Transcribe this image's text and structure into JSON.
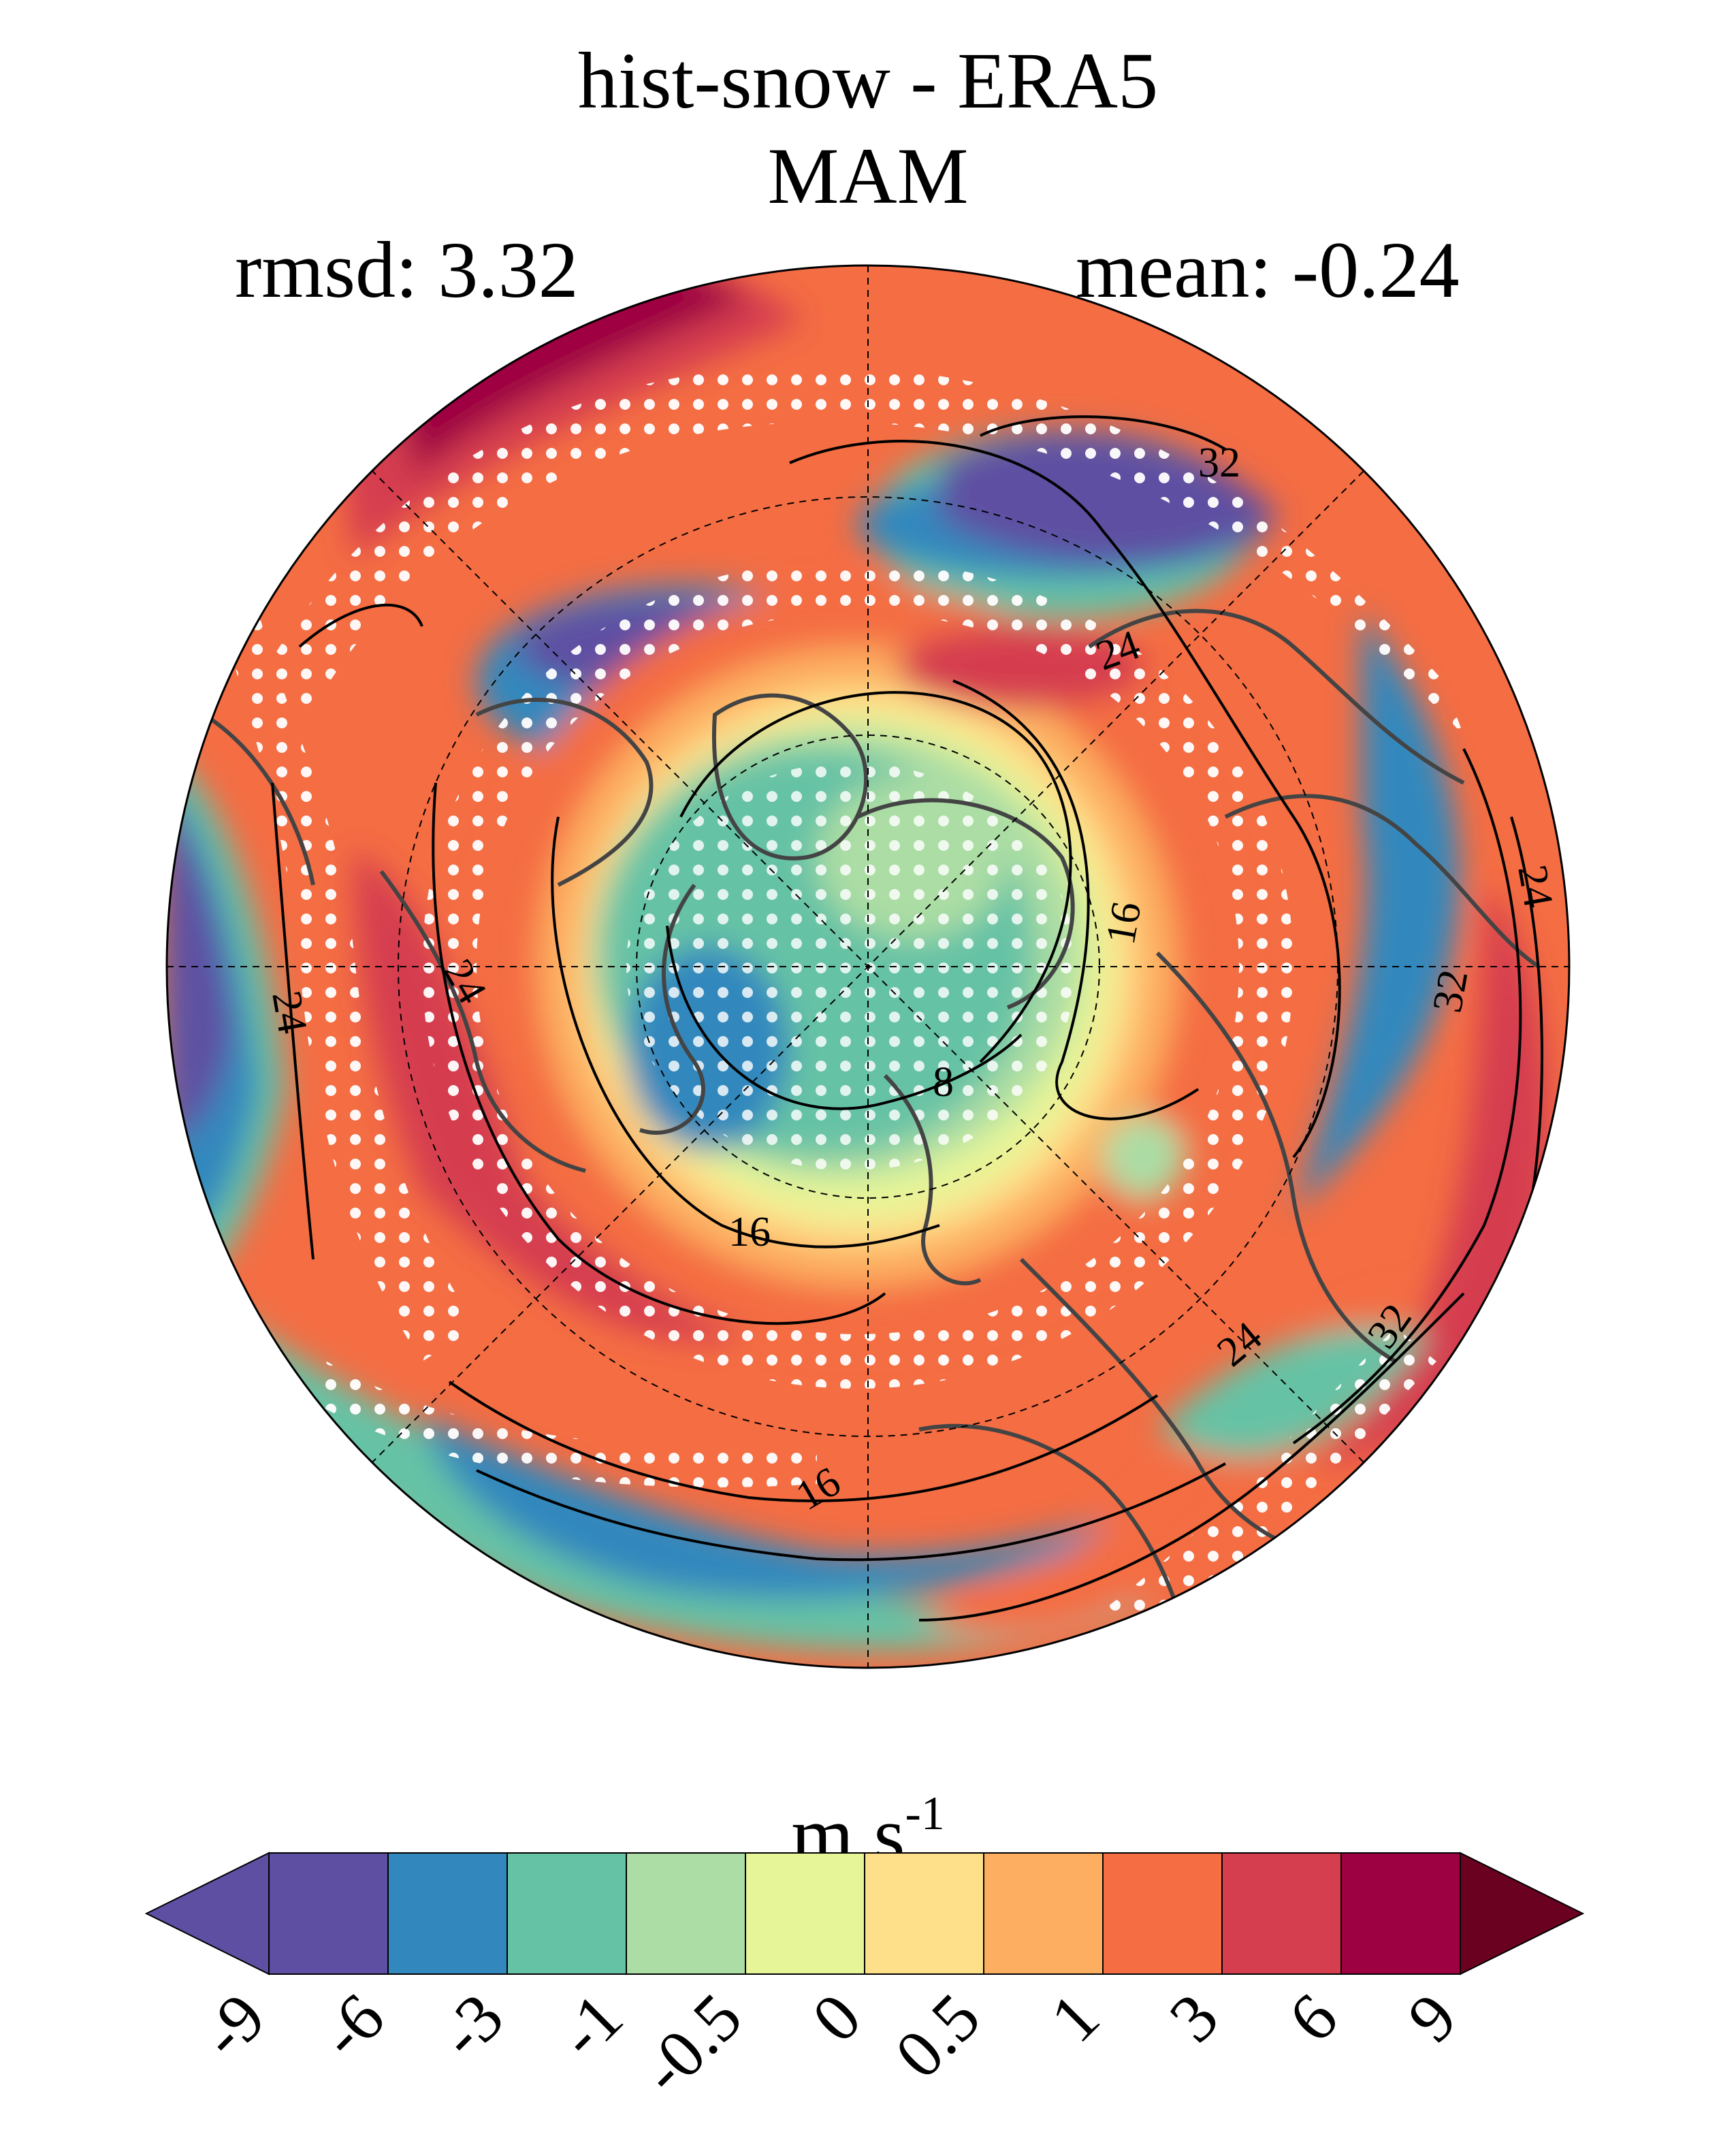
{
  "figure": {
    "title_line1": "hist-snow - ERA5",
    "title_line2": "MAM",
    "rmsd_label": "rmsd: 3.32",
    "mean_label": "mean: -0.24"
  },
  "map": {
    "projection": "north polar stereographic",
    "stippling": "white dots",
    "contour_labels": [
      "32",
      "24",
      "24",
      "24",
      "24",
      "16",
      "16",
      "16",
      "8",
      "32",
      "32",
      "24"
    ]
  },
  "colorbar": {
    "units": "m s",
    "units_exponent": "-1",
    "tick_labels": [
      "-9",
      "-6",
      "-3",
      "-1",
      "-0.5",
      "0",
      "0.5",
      "1",
      "3",
      "6",
      "9"
    ],
    "colors": [
      "#5e4fa2",
      "#5e4fa2",
      "#3288bd",
      "#66c2a5",
      "#abdda4",
      "#e6f598",
      "#fee08b",
      "#fdae61",
      "#f46d43",
      "#d53e4f",
      "#9e0142",
      "#6a0120"
    ]
  }
}
